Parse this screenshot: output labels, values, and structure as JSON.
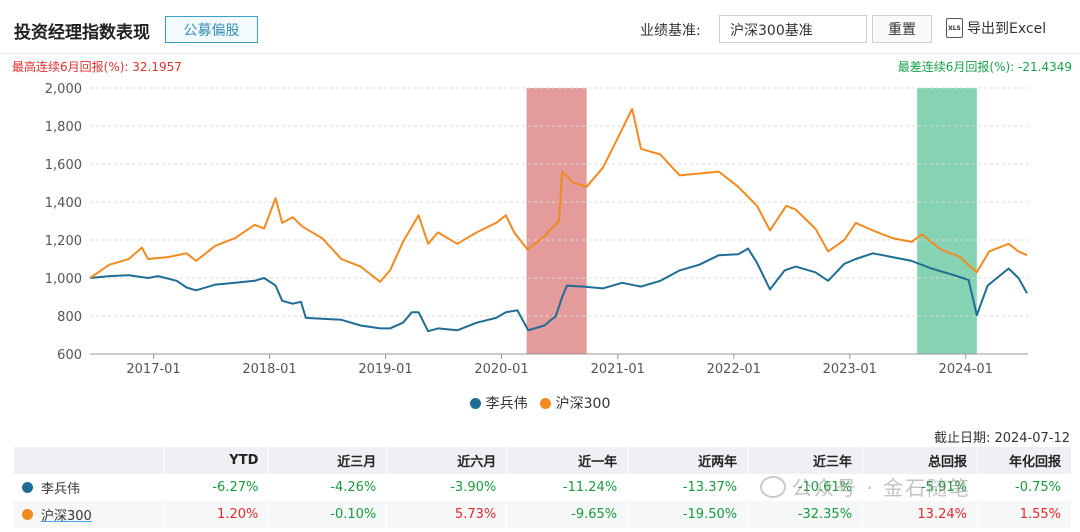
{
  "header": {
    "title": "投资经理指数表现",
    "tag_button": "公募偏股",
    "benchmark_label": "业绩基准:",
    "benchmark_value": "沪深300基准",
    "reset_button": "重置",
    "export_button": "导出到Excel",
    "export_icon_text": "XLS"
  },
  "stats": {
    "max_return": "最高连续6月回报(%): 32.1957",
    "min_return": "最差连续6月回报(%): -21.4349"
  },
  "colors": {
    "manager": "#1f6d94",
    "hs300": "#f28a1f",
    "highlight_max": "#d97a7a",
    "highlight_min": "#5cc49a",
    "negative": "#1a9a3e",
    "positive": "#e02a2a"
  },
  "chart_data": {
    "type": "line",
    "x_tick_labels": [
      "2017-01",
      "2018-01",
      "2019-01",
      "2020-01",
      "2021-01",
      "2022-01",
      "2023-01",
      "2024-01"
    ],
    "ylim": [
      600,
      2000
    ],
    "yticks": [
      600,
      800,
      1000,
      1200,
      1400,
      1600,
      1800,
      2000
    ],
    "ytick_labels": [
      "600",
      "800",
      "1,000",
      "1,200",
      "1,400",
      "1,600",
      "1,800",
      "2,000"
    ],
    "xlim": [
      "2016-06-15",
      "2024-07-15"
    ],
    "grid": true,
    "legend_position": "bottom",
    "highlight_regions": [
      {
        "kind": "max",
        "start": "2020-03-20",
        "end": "2020-09-25"
      },
      {
        "kind": "min",
        "start": "2023-08-01",
        "end": "2024-02-05"
      }
    ],
    "series": [
      {
        "name": "李兵伟",
        "color_key": "manager",
        "points": [
          [
            "2016-06-15",
            1000
          ],
          [
            "2016-08-15",
            1010
          ],
          [
            "2016-10-15",
            1015
          ],
          [
            "2016-12-15",
            1000
          ],
          [
            "2017-01-15",
            1010
          ],
          [
            "2017-03-15",
            985
          ],
          [
            "2017-04-15",
            950
          ],
          [
            "2017-05-15",
            935
          ],
          [
            "2017-07-15",
            965
          ],
          [
            "2017-09-15",
            975
          ],
          [
            "2017-11-15",
            985
          ],
          [
            "2017-12-15",
            1000
          ],
          [
            "2018-01-20",
            960
          ],
          [
            "2018-02-10",
            880
          ],
          [
            "2018-03-15",
            865
          ],
          [
            "2018-04-10",
            875
          ],
          [
            "2018-04-25",
            790
          ],
          [
            "2018-06-15",
            785
          ],
          [
            "2018-08-15",
            780
          ],
          [
            "2018-10-15",
            750
          ],
          [
            "2018-12-15",
            735
          ],
          [
            "2019-01-15",
            735
          ],
          [
            "2019-02-25",
            765
          ],
          [
            "2019-03-25",
            820
          ],
          [
            "2019-04-15",
            820
          ],
          [
            "2019-05-15",
            720
          ],
          [
            "2019-06-15",
            735
          ],
          [
            "2019-08-15",
            725
          ],
          [
            "2019-10-15",
            765
          ],
          [
            "2019-12-15",
            790
          ],
          [
            "2020-01-15",
            820
          ],
          [
            "2020-02-20",
            830
          ],
          [
            "2020-03-25",
            725
          ],
          [
            "2020-05-15",
            750
          ],
          [
            "2020-06-20",
            800
          ],
          [
            "2020-07-10",
            900
          ],
          [
            "2020-07-25",
            960
          ],
          [
            "2020-09-15",
            955
          ],
          [
            "2020-11-15",
            945
          ],
          [
            "2021-01-15",
            975
          ],
          [
            "2021-03-15",
            955
          ],
          [
            "2021-05-15",
            985
          ],
          [
            "2021-07-15",
            1040
          ],
          [
            "2021-09-15",
            1070
          ],
          [
            "2021-11-15",
            1120
          ],
          [
            "2022-01-15",
            1125
          ],
          [
            "2022-02-15",
            1155
          ],
          [
            "2022-03-15",
            1080
          ],
          [
            "2022-04-25",
            940
          ],
          [
            "2022-06-10",
            1040
          ],
          [
            "2022-07-15",
            1060
          ],
          [
            "2022-09-15",
            1030
          ],
          [
            "2022-10-25",
            985
          ],
          [
            "2022-12-15",
            1075
          ],
          [
            "2023-01-20",
            1100
          ],
          [
            "2023-03-15",
            1130
          ],
          [
            "2023-05-15",
            1110
          ],
          [
            "2023-07-15",
            1090
          ],
          [
            "2023-09-15",
            1050
          ],
          [
            "2023-11-15",
            1020
          ],
          [
            "2024-01-10",
            990
          ],
          [
            "2024-02-05",
            805
          ],
          [
            "2024-03-10",
            960
          ],
          [
            "2024-05-15",
            1050
          ],
          [
            "2024-06-15",
            1000
          ],
          [
            "2024-07-12",
            920
          ]
        ]
      },
      {
        "name": "沪深300",
        "color_key": "hs300",
        "points": [
          [
            "2016-06-15",
            1000
          ],
          [
            "2016-08-15",
            1070
          ],
          [
            "2016-10-15",
            1100
          ],
          [
            "2016-11-25",
            1160
          ],
          [
            "2016-12-15",
            1100
          ],
          [
            "2017-02-15",
            1110
          ],
          [
            "2017-04-15",
            1130
          ],
          [
            "2017-05-15",
            1090
          ],
          [
            "2017-07-15",
            1170
          ],
          [
            "2017-09-15",
            1210
          ],
          [
            "2017-11-15",
            1280
          ],
          [
            "2017-12-15",
            1260
          ],
          [
            "2018-01-20",
            1420
          ],
          [
            "2018-02-10",
            1290
          ],
          [
            "2018-03-15",
            1320
          ],
          [
            "2018-04-15",
            1270
          ],
          [
            "2018-06-15",
            1210
          ],
          [
            "2018-08-15",
            1100
          ],
          [
            "2018-10-15",
            1060
          ],
          [
            "2018-12-15",
            980
          ],
          [
            "2019-01-15",
            1040
          ],
          [
            "2019-02-25",
            1190
          ],
          [
            "2019-04-15",
            1330
          ],
          [
            "2019-05-15",
            1180
          ],
          [
            "2019-06-15",
            1240
          ],
          [
            "2019-08-15",
            1180
          ],
          [
            "2019-10-15",
            1240
          ],
          [
            "2019-12-15",
            1290
          ],
          [
            "2020-01-15",
            1330
          ],
          [
            "2020-02-10",
            1240
          ],
          [
            "2020-03-23",
            1150
          ],
          [
            "2020-05-15",
            1220
          ],
          [
            "2020-06-30",
            1300
          ],
          [
            "2020-07-10",
            1560
          ],
          [
            "2020-08-15",
            1500
          ],
          [
            "2020-09-25",
            1480
          ],
          [
            "2020-11-15",
            1580
          ],
          [
            "2020-12-15",
            1680
          ],
          [
            "2021-02-15",
            1890
          ],
          [
            "2021-03-15",
            1680
          ],
          [
            "2021-05-15",
            1650
          ],
          [
            "2021-07-15",
            1540
          ],
          [
            "2021-09-15",
            1550
          ],
          [
            "2021-11-15",
            1560
          ],
          [
            "2022-01-15",
            1480
          ],
          [
            "2022-03-15",
            1380
          ],
          [
            "2022-04-25",
            1250
          ],
          [
            "2022-06-15",
            1380
          ],
          [
            "2022-07-15",
            1360
          ],
          [
            "2022-09-15",
            1260
          ],
          [
            "2022-10-25",
            1140
          ],
          [
            "2022-12-15",
            1200
          ],
          [
            "2023-01-20",
            1290
          ],
          [
            "2023-03-15",
            1250
          ],
          [
            "2023-05-15",
            1210
          ],
          [
            "2023-07-15",
            1190
          ],
          [
            "2023-08-15",
            1230
          ],
          [
            "2023-10-15",
            1150
          ],
          [
            "2023-12-15",
            1110
          ],
          [
            "2024-01-15",
            1060
          ],
          [
            "2024-02-05",
            1030
          ],
          [
            "2024-03-15",
            1140
          ],
          [
            "2024-05-15",
            1180
          ],
          [
            "2024-06-15",
            1140
          ],
          [
            "2024-07-12",
            1120
          ]
        ]
      }
    ]
  },
  "legend": {
    "manager": "李兵伟",
    "hs300": "沪深300"
  },
  "as_of": "截止日期: 2024-07-12",
  "table": {
    "headers": [
      "",
      "YTD",
      "近三月",
      "近六月",
      "近一年",
      "近两年",
      "近三年",
      "总回报",
      "年化回报"
    ],
    "rows": [
      {
        "name": "李兵伟",
        "color_key": "manager",
        "values": [
          "-6.27%",
          "-4.26%",
          "-3.90%",
          "-11.24%",
          "-13.37%",
          "-10.61%",
          "-5.91%",
          "-0.75%"
        ]
      },
      {
        "name": "沪深300",
        "color_key": "hs300",
        "values": [
          "1.20%",
          "-0.10%",
          "5.73%",
          "-9.65%",
          "-19.50%",
          "-32.35%",
          "13.24%",
          "1.55%"
        ]
      }
    ]
  },
  "watermark": "公众号 · 金石随笔"
}
